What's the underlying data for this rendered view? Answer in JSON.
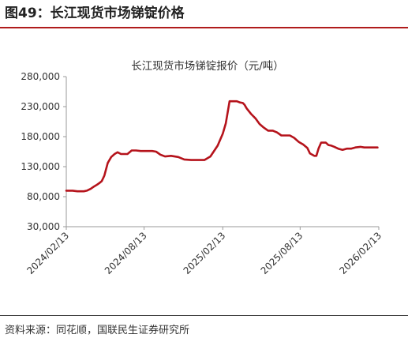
{
  "figure_title": "图49：长江现货市场锑锭价格",
  "source": "资料来源：同花顺，国联民生证券研究所",
  "colors": {
    "accent": "#b01c1c",
    "series": "#b5131b",
    "axis": "#9a9a9a"
  },
  "chart_data": {
    "type": "line",
    "title": "长江现货市场锑锭报价（元/吨）",
    "xlabel": "",
    "ylabel": "",
    "ylim": [
      30000,
      280000
    ],
    "yticks": [
      "280,000",
      "230,000",
      "180,000",
      "130,000",
      "80,000",
      "30,000"
    ],
    "ytick_values": [
      280000,
      230000,
      180000,
      130000,
      80000,
      30000
    ],
    "xticks": [
      "2024/02/13",
      "2024/08/13",
      "2025/02/13",
      "2025/08/13",
      "2026/02/13"
    ],
    "xtick_values": [
      "2024-02-13",
      "2024-08-13",
      "2025-02-13",
      "2025-08-13",
      "2026-02-13"
    ],
    "xlim": [
      "2024-02-13",
      "2026-02-13"
    ],
    "grid": false,
    "legend": "none",
    "series": [
      {
        "x": [
          "2024-02-13",
          "2024-02-28",
          "2024-03-10",
          "2024-03-25",
          "2024-04-01",
          "2024-04-10",
          "2024-04-18",
          "2024-04-25",
          "2024-05-01",
          "2024-05-06",
          "2024-05-12",
          "2024-05-20",
          "2024-05-28",
          "2024-06-05",
          "2024-06-12",
          "2024-06-20",
          "2024-06-28",
          "2024-07-05",
          "2024-07-15",
          "2024-07-25",
          "2024-08-05",
          "2024-08-20",
          "2024-09-01",
          "2024-09-10",
          "2024-09-20",
          "2024-10-01",
          "2024-10-15",
          "2024-11-01",
          "2024-11-15",
          "2024-12-01",
          "2024-12-15",
          "2025-01-01",
          "2025-01-15",
          "2025-02-01",
          "2025-02-13",
          "2025-02-20",
          "2025-03-01",
          "2025-03-10",
          "2025-03-18",
          "2025-03-25",
          "2025-04-01",
          "2025-04-05",
          "2025-04-10",
          "2025-04-20",
          "2025-05-01",
          "2025-05-10",
          "2025-05-20",
          "2025-05-30",
          "2025-06-10",
          "2025-06-20",
          "2025-06-30",
          "2025-07-10",
          "2025-07-20",
          "2025-07-30",
          "2025-08-10",
          "2025-08-20",
          "2025-08-30",
          "2025-09-05",
          "2025-09-15",
          "2025-09-20",
          "2025-09-25",
          "2025-10-01",
          "2025-10-08",
          "2025-10-12",
          "2025-10-18",
          "2025-10-25",
          "2025-11-01",
          "2025-11-10",
          "2025-11-20",
          "2025-11-30",
          "2025-12-10",
          "2025-12-20",
          "2026-01-01",
          "2026-01-10",
          "2026-01-20",
          "2026-01-30",
          "2026-02-10"
        ],
        "y": [
          90000,
          90000,
          89000,
          89000,
          90000,
          93000,
          97000,
          100000,
          103000,
          106000,
          115000,
          136000,
          146000,
          151000,
          154000,
          151000,
          151000,
          151000,
          157000,
          157000,
          156000,
          156000,
          156000,
          155000,
          150000,
          147000,
          148000,
          146000,
          142000,
          141000,
          141000,
          141000,
          147000,
          165000,
          185000,
          202000,
          239000,
          239000,
          239000,
          237000,
          236000,
          233000,
          227000,
          218000,
          210000,
          201000,
          195000,
          190000,
          190000,
          187000,
          182000,
          182000,
          182000,
          178000,
          171000,
          167000,
          161000,
          152000,
          148000,
          148000,
          160000,
          170000,
          170000,
          170000,
          166000,
          165000,
          163000,
          160000,
          158000,
          160000,
          160000,
          162000,
          163000,
          162000,
          162000,
          162000,
          162000
        ]
      }
    ]
  }
}
